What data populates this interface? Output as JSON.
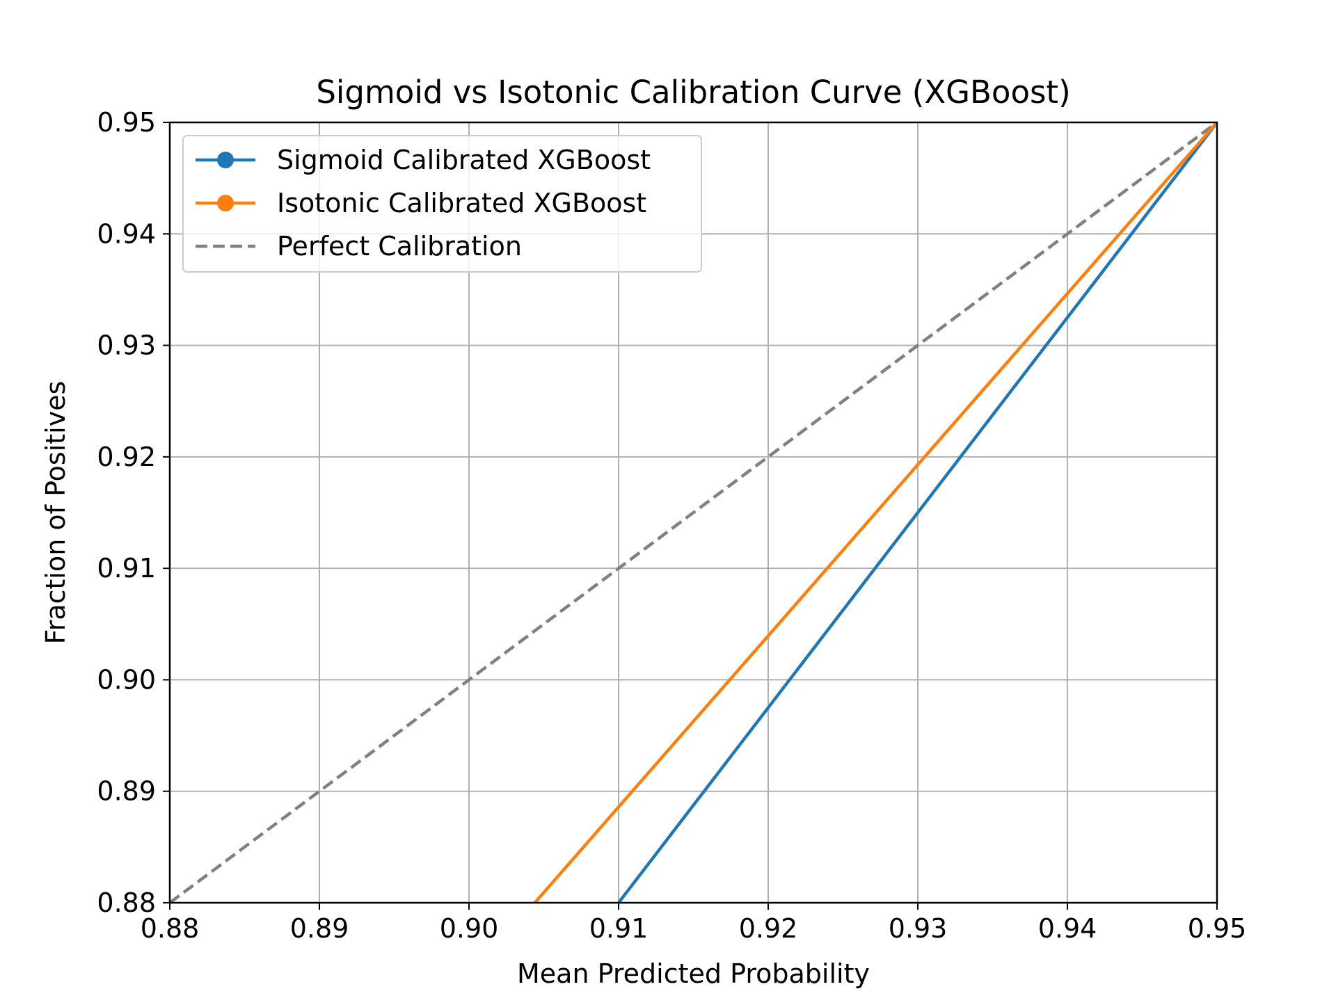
{
  "chart_data": {
    "type": "line",
    "title": "Sigmoid vs Isotonic Calibration Curve (XGBoost)",
    "xlabel": "Mean Predicted Probability",
    "ylabel": "Fraction of Positives",
    "xlim": [
      0.88,
      0.95
    ],
    "ylim": [
      0.88,
      0.95
    ],
    "xticks": [
      "0.88",
      "0.89",
      "0.90",
      "0.91",
      "0.92",
      "0.93",
      "0.94",
      "0.95"
    ],
    "yticks": [
      "0.88",
      "0.89",
      "0.90",
      "0.91",
      "0.92",
      "0.93",
      "0.94",
      "0.95"
    ],
    "grid": true,
    "legend_position": "top-left",
    "series": [
      {
        "name": "Sigmoid Calibrated XGBoost",
        "color": "#1f77b4",
        "style": "solid",
        "marker": "circle",
        "x": [
          0.91,
          0.95
        ],
        "y": [
          0.88,
          0.95
        ]
      },
      {
        "name": "Isotonic Calibrated XGBoost",
        "color": "#ff7f0e",
        "style": "solid",
        "marker": "circle",
        "x": [
          0.9044,
          0.95
        ],
        "y": [
          0.88,
          0.95
        ]
      },
      {
        "name": "Perfect Calibration",
        "color": "#808080",
        "style": "dashed",
        "marker": "none",
        "x": [
          0.88,
          0.95
        ],
        "y": [
          0.88,
          0.95
        ]
      }
    ]
  }
}
